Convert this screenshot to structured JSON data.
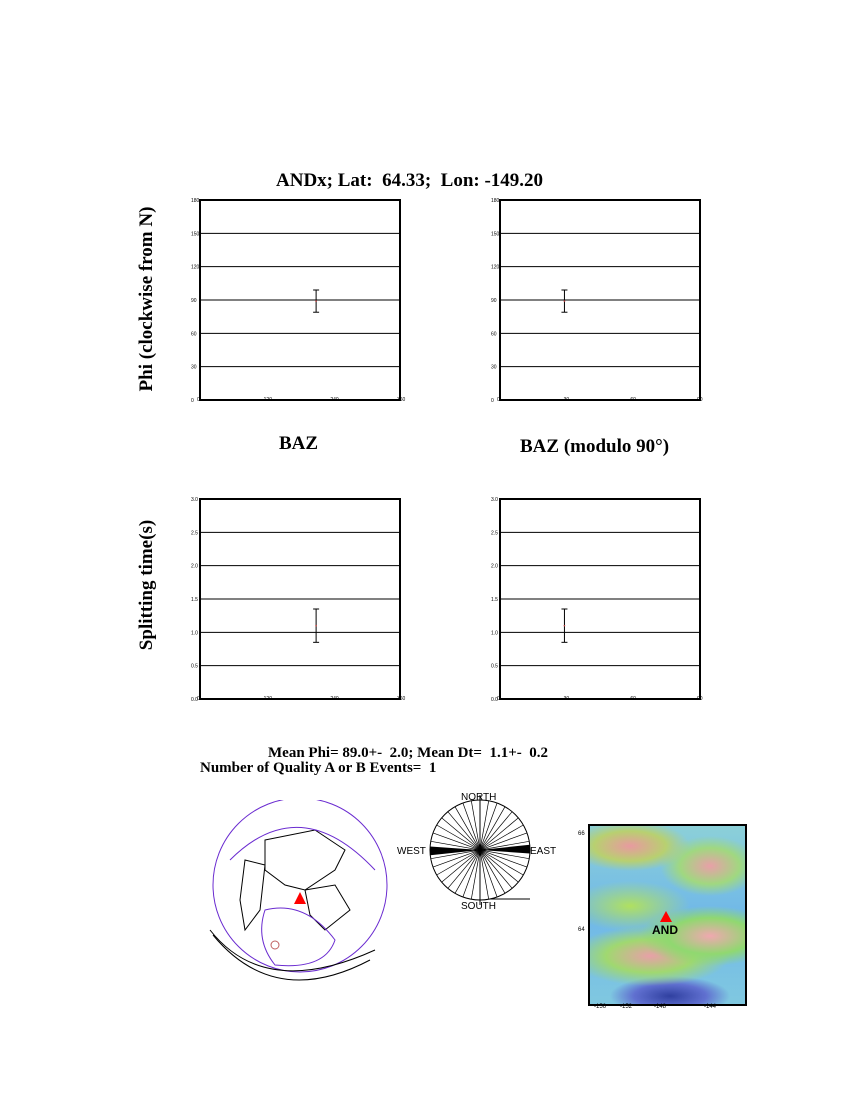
{
  "title": "ANDx; Lat:  64.33;  Lon: -149.20",
  "ylabel_top": "Phi (clockwise from N)",
  "ylabel_bottom": "Splitting time(s)",
  "xlabel_left": "BAZ",
  "xlabel_right": "BAZ (modulo 90°)",
  "summary_line1": "Mean Phi= 89.0+-  2.0; Mean Dt=  1.1+-  0.2",
  "summary_line2": "Number of Quality A or B Events=  1",
  "rose": {
    "north": "NORTH",
    "south": "SOUTH",
    "east": "EAST",
    "west": "WEST",
    "dominant_azimuth_deg": 89
  },
  "map": {
    "station_label": "AND",
    "lat_ticks": [
      "66",
      "64"
    ],
    "lon_ticks": [
      "-156",
      "-152",
      "-148",
      "-144"
    ],
    "station_color": "#ff0000"
  },
  "chart_data": [
    {
      "type": "scatter",
      "xlabel": "BAZ",
      "ylabel": "Phi (clockwise from N)",
      "xlim": [
        0,
        360
      ],
      "ylim": [
        0,
        180
      ],
      "xticks": [
        "0",
        "120",
        "240",
        "360"
      ],
      "yticks": [
        "0",
        "30",
        "60",
        "90",
        "120",
        "150",
        "180"
      ],
      "grid": "horizontal",
      "points": [
        {
          "x": 209,
          "y": 89,
          "err_low": 79,
          "err_high": 99
        }
      ]
    },
    {
      "type": "scatter",
      "xlabel": "BAZ (modulo 90°)",
      "ylabel": "Phi (clockwise from N)",
      "xlim": [
        0,
        90
      ],
      "ylim": [
        0,
        180
      ],
      "xticks": [
        "0",
        "30",
        "60",
        "90"
      ],
      "yticks": [
        "0",
        "30",
        "60",
        "90",
        "120",
        "150",
        "180"
      ],
      "grid": "horizontal",
      "points": [
        {
          "x": 29,
          "y": 89,
          "err_low": 79,
          "err_high": 99
        }
      ]
    },
    {
      "type": "scatter",
      "xlabel": "BAZ",
      "ylabel": "Splitting time(s)",
      "xlim": [
        0,
        360
      ],
      "ylim": [
        0,
        3
      ],
      "xticks": [
        "0",
        "120",
        "240",
        "360"
      ],
      "yticks": [
        "0.0",
        "0.5",
        "1.0",
        "1.5",
        "2.0",
        "2.5",
        "3.0"
      ],
      "grid": "horizontal",
      "points": [
        {
          "x": 209,
          "y": 1.1,
          "err_low": 0.85,
          "err_high": 1.35
        }
      ]
    },
    {
      "type": "scatter",
      "xlabel": "BAZ (modulo 90°)",
      "ylabel": "Splitting time(s)",
      "xlim": [
        0,
        90
      ],
      "ylim": [
        0,
        3
      ],
      "xticks": [
        "0",
        "30",
        "60",
        "90"
      ],
      "yticks": [
        "0.0",
        "0.5",
        "1.0",
        "1.5",
        "2.0",
        "2.5",
        "3.0"
      ],
      "grid": "horizontal",
      "points": [
        {
          "x": 29,
          "y": 1.1,
          "err_low": 0.85,
          "err_high": 1.35
        }
      ]
    }
  ]
}
